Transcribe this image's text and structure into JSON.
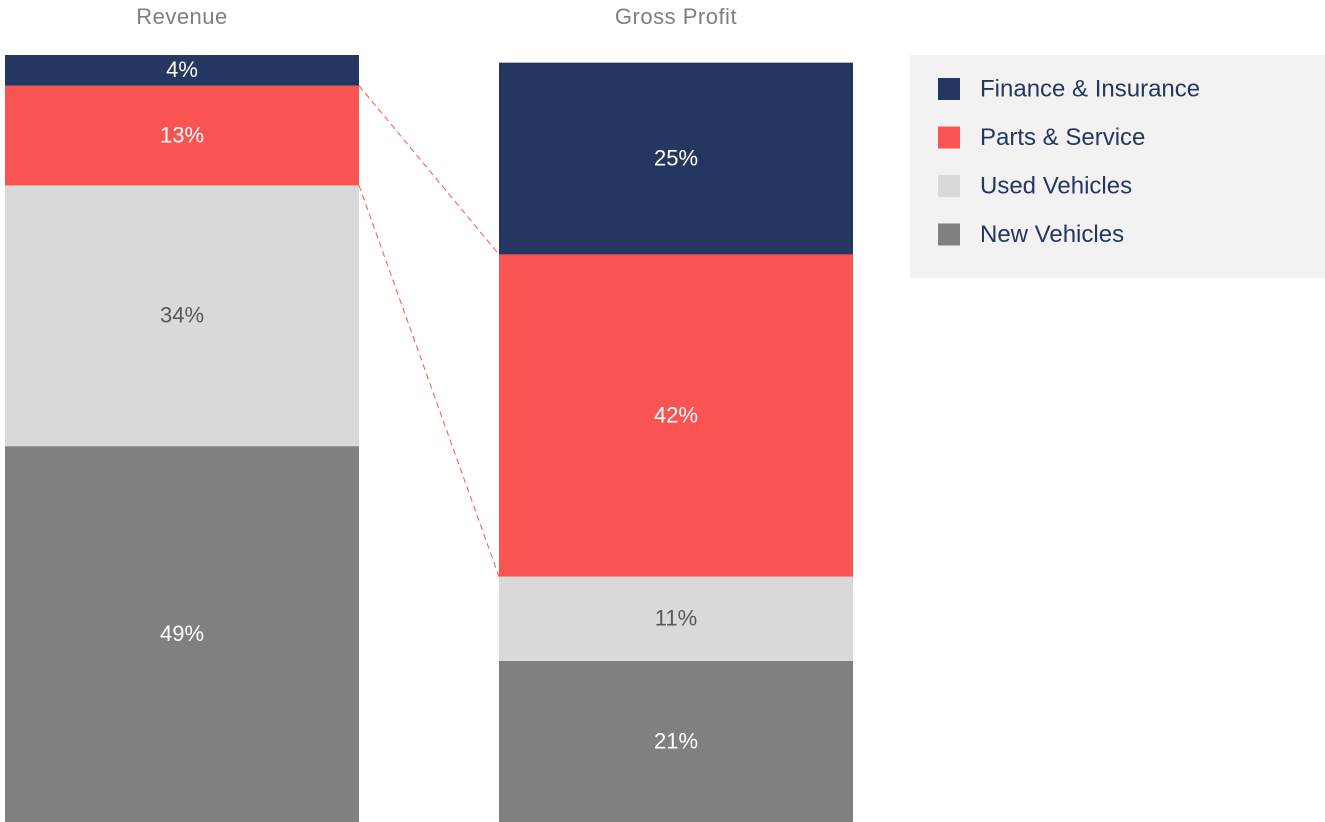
{
  "chart_data": {
    "type": "stacked_bar",
    "categories": [
      "Revenue",
      "Gross Profit"
    ],
    "series": [
      {
        "name": "New Vehicles",
        "color": "#808080",
        "values": [
          49,
          21
        ],
        "value_labels": [
          "49%",
          "21%"
        ]
      },
      {
        "name": "Used Vehicles",
        "color": "#d9d9d9",
        "values": [
          34,
          11
        ],
        "value_labels": [
          "34%",
          "11%"
        ]
      },
      {
        "name": "Parts & Service",
        "color": "#f95352",
        "values": [
          13,
          42
        ],
        "value_labels": [
          "13%",
          "42%"
        ]
      },
      {
        "name": "Finance & Insurance",
        "color": "#253760",
        "values": [
          4,
          25
        ],
        "value_labels": [
          "4%",
          "25%"
        ]
      }
    ],
    "ylim": [
      0,
      100
    ],
    "legend": "top-right",
    "connector": {
      "series": 2,
      "color": "#f95352",
      "dashed": true
    }
  }
}
